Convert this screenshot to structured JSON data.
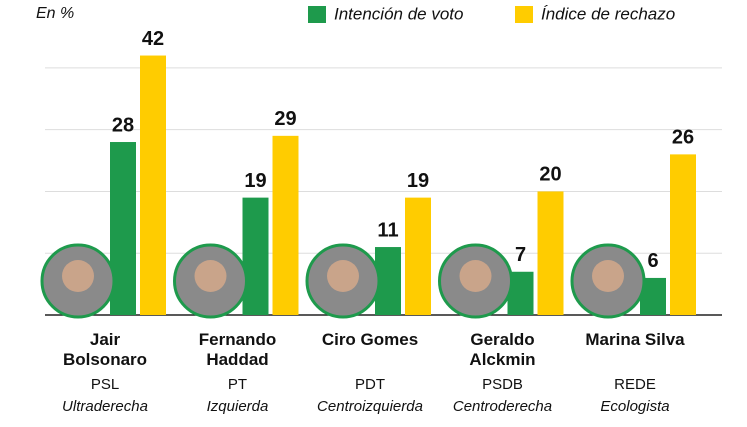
{
  "chart_data": {
    "type": "bar",
    "unit_label": "En %",
    "categories": [
      "Jair Bolsonaro",
      "Fernando Haddad",
      "Ciro Gomes",
      "Geraldo Alckmin",
      "Marina Silva"
    ],
    "parties": [
      "PSL",
      "PT",
      "PDT",
      "PSDB",
      "REDE"
    ],
    "ideologies": [
      "Ultraderecha",
      "Izquierda",
      "Centroizquierda",
      "Centroderecha",
      "Ecologista"
    ],
    "series": [
      {
        "name": "Intención de voto",
        "color": "#1e9a4c",
        "values": [
          28,
          19,
          11,
          7,
          6
        ]
      },
      {
        "name": "Índice de rechazo",
        "color": "#ffcc00",
        "values": [
          42,
          29,
          19,
          20,
          26
        ]
      }
    ],
    "ylim": [
      0,
      45
    ],
    "yticks": [
      0,
      10,
      20,
      30,
      40
    ],
    "grid": true,
    "legend": "top-right"
  }
}
